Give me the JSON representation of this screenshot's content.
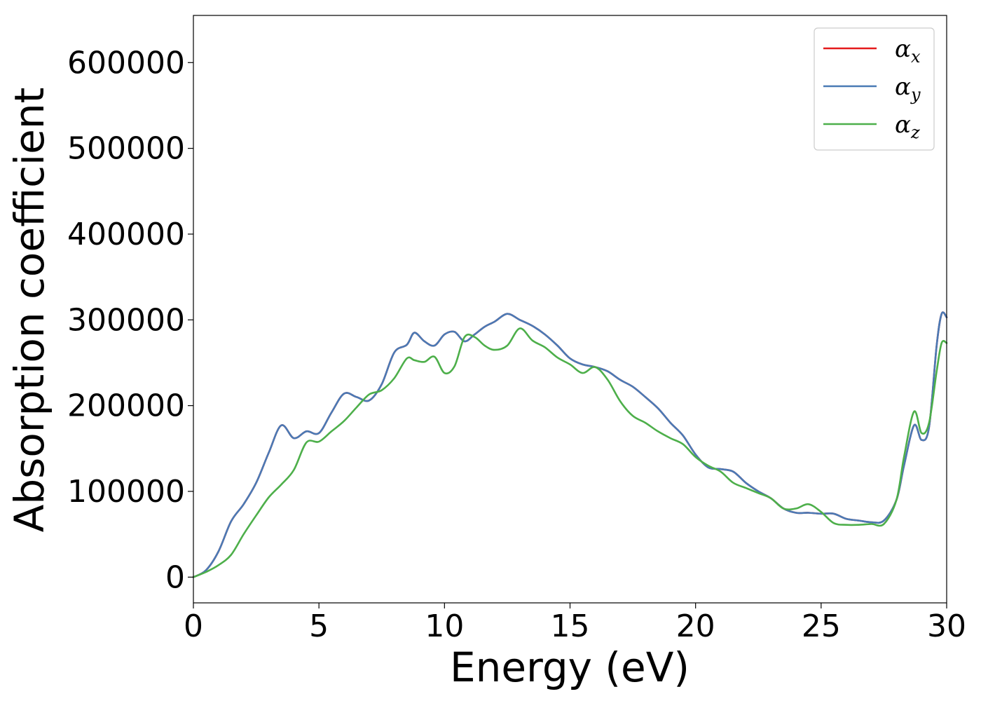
{
  "chart_data": {
    "type": "line",
    "title": "",
    "xlabel": "Energy (eV)",
    "ylabel": "Absorption coefficient",
    "xlim": [
      0,
      30
    ],
    "ylim": [
      -30000,
      655000
    ],
    "xticks": [
      0,
      5,
      10,
      15,
      20,
      25,
      30
    ],
    "yticks": [
      0,
      100000,
      200000,
      300000,
      400000,
      500000,
      600000
    ],
    "grid": false,
    "legend_position": "top-right",
    "x": [
      0,
      0.5,
      1,
      1.5,
      2,
      2.5,
      3,
      3.5,
      4,
      4.5,
      5,
      5.5,
      6,
      6.5,
      7,
      7.5,
      8,
      8.5,
      8.8,
      9.2,
      9.6,
      10,
      10.4,
      10.8,
      11.2,
      11.6,
      12,
      12.5,
      13,
      13.5,
      14,
      14.5,
      15,
      15.5,
      16,
      16.5,
      17,
      17.5,
      18,
      18.5,
      19,
      19.5,
      20,
      20.5,
      21,
      21.5,
      22,
      22.5,
      23,
      23.5,
      24,
      24.5,
      25,
      25.5,
      26,
      26.5,
      27,
      27.5,
      28,
      28.3,
      28.7,
      29,
      29.3,
      29.6,
      29.8,
      30
    ],
    "series": [
      {
        "name": "α_x",
        "label_base": "α",
        "label_sub": "x",
        "color": "#e41a1c",
        "values": [
          0,
          8000,
          30000,
          65000,
          85000,
          110000,
          145000,
          177000,
          162000,
          170000,
          168000,
          192000,
          214000,
          210000,
          206000,
          225000,
          262000,
          271000,
          285000,
          275000,
          270000,
          283000,
          286000,
          275000,
          283000,
          292000,
          298000,
          307000,
          300000,
          293000,
          283000,
          270000,
          255000,
          248000,
          245000,
          240000,
          230000,
          222000,
          210000,
          197000,
          180000,
          165000,
          143000,
          128000,
          126000,
          123000,
          110000,
          100000,
          92000,
          80000,
          75000,
          75000,
          74000,
          74000,
          68000,
          66000,
          64000,
          66000,
          90000,
          130000,
          177000,
          160000,
          175000,
          270000,
          307000,
          303000
        ]
      },
      {
        "name": "α_y",
        "label_base": "α",
        "label_sub": "y",
        "color": "#4a7ab5",
        "values": [
          0,
          8000,
          30000,
          65000,
          85000,
          110000,
          145000,
          177000,
          162000,
          170000,
          168000,
          192000,
          214000,
          210000,
          206000,
          225000,
          262000,
          271000,
          285000,
          275000,
          270000,
          283000,
          286000,
          275000,
          283000,
          292000,
          298000,
          307000,
          300000,
          293000,
          283000,
          270000,
          255000,
          248000,
          245000,
          240000,
          230000,
          222000,
          210000,
          197000,
          180000,
          165000,
          143000,
          128000,
          126000,
          123000,
          110000,
          100000,
          92000,
          80000,
          75000,
          75000,
          74000,
          74000,
          68000,
          66000,
          64000,
          66000,
          90000,
          130000,
          177000,
          160000,
          175000,
          270000,
          307000,
          303000
        ]
      },
      {
        "name": "α_z",
        "label_base": "α",
        "label_sub": "z",
        "color": "#4daf4a",
        "values": [
          0,
          6000,
          14000,
          26000,
          50000,
          72000,
          93000,
          108000,
          125000,
          157000,
          158000,
          170000,
          182000,
          198000,
          213000,
          218000,
          232000,
          255000,
          253000,
          251000,
          257000,
          238000,
          246000,
          280000,
          280000,
          270000,
          265000,
          270000,
          290000,
          276000,
          268000,
          256000,
          248000,
          238000,
          245000,
          230000,
          205000,
          188000,
          180000,
          170000,
          162000,
          155000,
          140000,
          130000,
          123000,
          110000,
          104000,
          98000,
          92000,
          80000,
          80000,
          85000,
          76000,
          63000,
          61000,
          61000,
          62000,
          62000,
          90000,
          140000,
          193000,
          168000,
          180000,
          240000,
          273000,
          273000
        ]
      }
    ]
  }
}
